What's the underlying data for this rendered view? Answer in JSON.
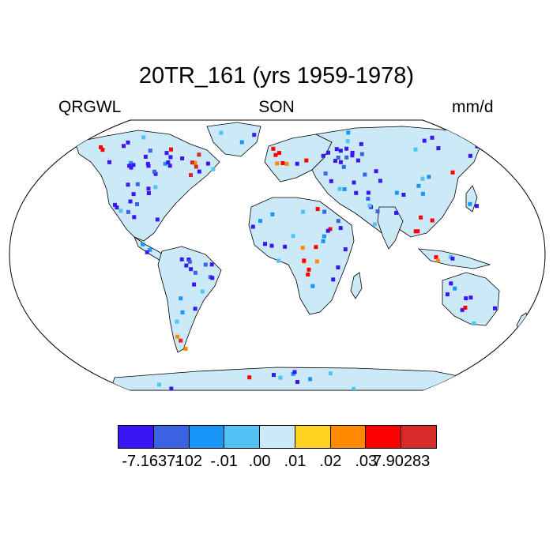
{
  "title": "20TR_161 (yrs 1959-1978)",
  "subtitle_left": "QRGWL",
  "subtitle_center": "SON",
  "subtitle_right": "mm/d",
  "colorbar": {
    "colors": [
      "#3b16f5",
      "#3b62e0",
      "#1896f8",
      "#52c2f5",
      "#cce9f7",
      "#ffd322",
      "#ff8a00",
      "#ff0000",
      "#d72a2a"
    ],
    "labels": [
      "-7.16371",
      "-.02",
      "-.01",
      ".00",
      ".01",
      ".02",
      ".03",
      "7.90283"
    ]
  },
  "map": {
    "projection": "robinson",
    "land_base_color": "#cce9f7",
    "ocean_color": "#ffffff",
    "coastline_color": "#000000"
  }
}
